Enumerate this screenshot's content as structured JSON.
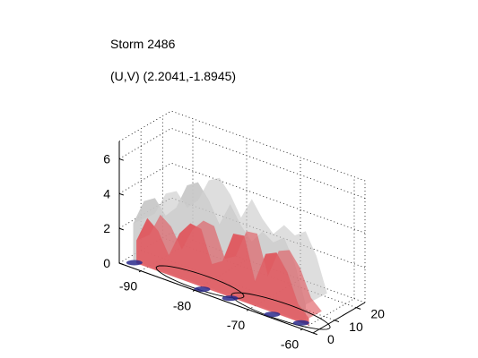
{
  "figure": {
    "title": "Storm 2486",
    "subtitle": "(U,V) (2.2041,-1.8945)"
  },
  "chart_data": {
    "type": "surface-3d",
    "title": "Storm 2486",
    "subtitle": "(U,V) (2.2041,-1.8945)",
    "xlabel": "",
    "ylabel": "",
    "zlabel": "",
    "x_ticks": [
      -90,
      -80,
      -70,
      -60
    ],
    "y_ticks": [
      0,
      10,
      20
    ],
    "z_ticks": [
      0,
      2,
      4,
      6
    ],
    "xlim": [
      -94,
      -58
    ],
    "ylim": [
      0,
      24
    ],
    "zlim": [
      0,
      7
    ],
    "grid": true,
    "series": [
      {
        "color": "#c8c8c8"
      },
      {
        "color": "#e0595f"
      },
      {
        "color": "#2a2a8c"
      }
    ],
    "outer_surface_profile": {
      "x": [
        -93,
        -91,
        -89,
        -87,
        -85,
        -83,
        -81,
        -79,
        -77,
        -75,
        -73,
        -71,
        -69,
        -67,
        -65,
        -63,
        -61
      ],
      "z": [
        2.1,
        3.6,
        4.0,
        3.2,
        3.9,
        5.4,
        5.8,
        5.0,
        3.8,
        5.2,
        4.2,
        3.5,
        4.3,
        3.9,
        4.4,
        3.1,
        1.0
      ]
    },
    "inner_surface_profile": {
      "x": [
        -92,
        -90,
        -88,
        -86,
        -84,
        -82,
        -80,
        -78,
        -76,
        -74,
        -72,
        -70,
        -68,
        -66,
        -64,
        -62,
        -60
      ],
      "z": [
        1.3,
        2.8,
        2.3,
        1.1,
        2.6,
        3.4,
        3.3,
        1.5,
        1.9,
        3.7,
        3.8,
        1.4,
        3.2,
        3.5,
        2.6,
        1.0,
        0.4
      ]
    }
  }
}
